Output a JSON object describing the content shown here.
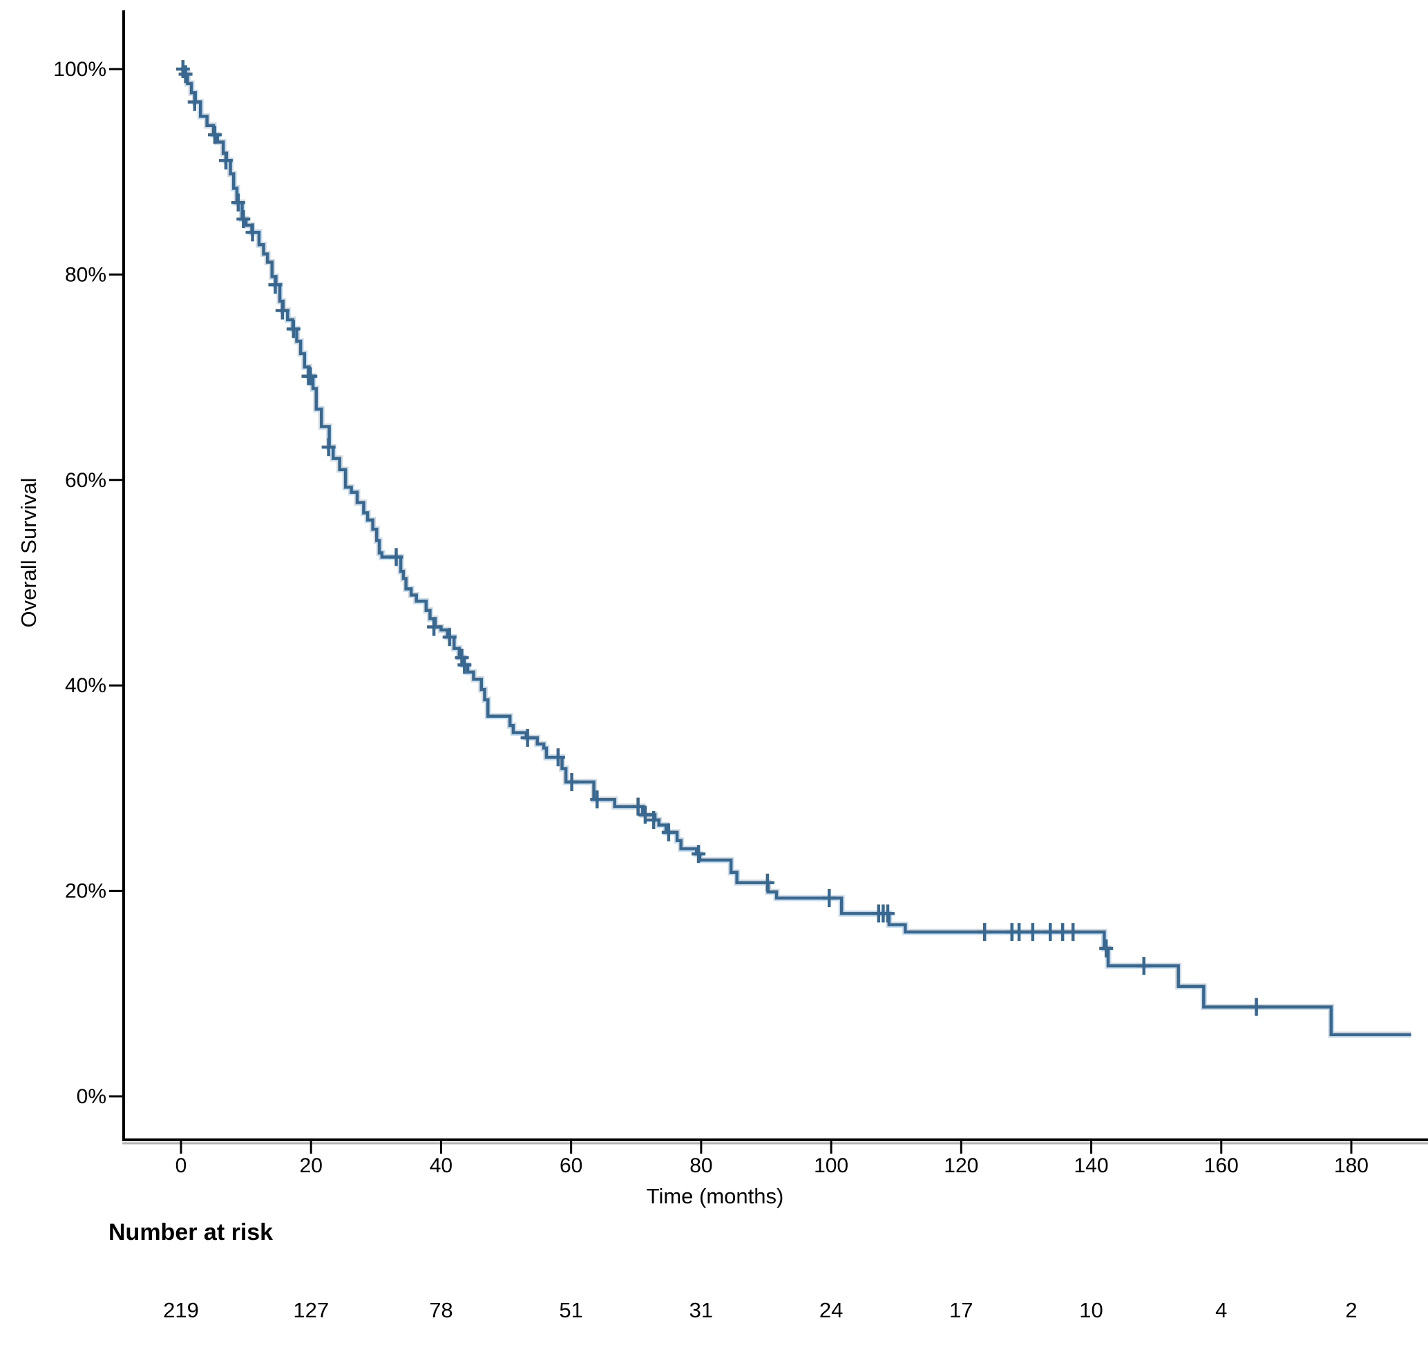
{
  "chart_data": {
    "type": "line",
    "subtype": "kaplan-meier-step-curve",
    "title": "",
    "xlabel": "Time (months)",
    "ylabel": "Overall Survival",
    "xlim": [
      0,
      190
    ],
    "ylim": [
      0,
      100
    ],
    "grid": false,
    "legend": "none",
    "x_ticks": [
      0,
      20,
      40,
      60,
      80,
      100,
      120,
      140,
      160,
      180
    ],
    "y_ticks": [
      {
        "value": 100,
        "label": "100%"
      },
      {
        "value": 80,
        "label": "80%"
      },
      {
        "value": 60,
        "label": "60%"
      },
      {
        "value": 40,
        "label": "40%"
      },
      {
        "value": 20,
        "label": "20%"
      },
      {
        "value": 0,
        "label": "0%"
      }
    ],
    "series": [
      {
        "name": "Overall Survival",
        "color": "#38678f",
        "halo_color": "#a6c0d6",
        "steps": [
          [
            0,
            100
          ],
          [
            0.5,
            99.5
          ],
          [
            1,
            98.6
          ],
          [
            1.6,
            97.7
          ],
          [
            2.2,
            96.8
          ],
          [
            3,
            95.4
          ],
          [
            4,
            94.5
          ],
          [
            5,
            93.6
          ],
          [
            5.6,
            92.9
          ],
          [
            6.5,
            91.8
          ],
          [
            7,
            91.1
          ],
          [
            7.6,
            89.8
          ],
          [
            8.1,
            88.4
          ],
          [
            8.6,
            87
          ],
          [
            9.4,
            85.4
          ],
          [
            10,
            84.8
          ],
          [
            10.9,
            84.1
          ],
          [
            12,
            82.9
          ],
          [
            12.7,
            82
          ],
          [
            13.3,
            81.2
          ],
          [
            14,
            79.8
          ],
          [
            14.6,
            79
          ],
          [
            15.2,
            77.4
          ],
          [
            15.7,
            76.5
          ],
          [
            16.4,
            75.6
          ],
          [
            17.2,
            74.7
          ],
          [
            17.8,
            73.5
          ],
          [
            18.4,
            72.3
          ],
          [
            19,
            71
          ],
          [
            19.7,
            70.1
          ],
          [
            20.3,
            68.9
          ],
          [
            20.8,
            66.9
          ],
          [
            21.6,
            65.2
          ],
          [
            22.8,
            63.2
          ],
          [
            23.4,
            62.1
          ],
          [
            24.4,
            61
          ],
          [
            25.3,
            59.3
          ],
          [
            26.2,
            58.8
          ],
          [
            27.1,
            57.8
          ],
          [
            28.1,
            56.8
          ],
          [
            28.7,
            56.1
          ],
          [
            29.5,
            55.2
          ],
          [
            30.1,
            54.1
          ],
          [
            30.5,
            52.9
          ],
          [
            30.9,
            52.5
          ],
          [
            33.8,
            51.1
          ],
          [
            34.2,
            50.4
          ],
          [
            34.6,
            49.4
          ],
          [
            35.4,
            48.8
          ],
          [
            36.2,
            48.2
          ],
          [
            37.7,
            47.3
          ],
          [
            38.3,
            46.5
          ],
          [
            39.1,
            45.7
          ],
          [
            40,
            45.4
          ],
          [
            41,
            44.7
          ],
          [
            42,
            43.6
          ],
          [
            42.8,
            42.7
          ],
          [
            43.4,
            42
          ],
          [
            44.1,
            41.3
          ],
          [
            45,
            40.6
          ],
          [
            46.2,
            39.6
          ],
          [
            46.7,
            38.6
          ],
          [
            47.2,
            37
          ],
          [
            50.6,
            36.1
          ],
          [
            51.1,
            35.4
          ],
          [
            53.1,
            34.9
          ],
          [
            54.8,
            34.3
          ],
          [
            55.8,
            33.9
          ],
          [
            56.2,
            33
          ],
          [
            58.6,
            31.9
          ],
          [
            59.2,
            30.6
          ],
          [
            63.5,
            28.9
          ],
          [
            66.7,
            28.2
          ],
          [
            71,
            27.4
          ],
          [
            72.9,
            26.9
          ],
          [
            73.5,
            26.4
          ],
          [
            74.6,
            25.7
          ],
          [
            76.3,
            24.9
          ],
          [
            76.9,
            24.1
          ],
          [
            79.3,
            23.6
          ],
          [
            79.8,
            23
          ],
          [
            84.6,
            21.8
          ],
          [
            85.5,
            20.8
          ],
          [
            90.3,
            19.9
          ],
          [
            91.6,
            19.3
          ],
          [
            101.6,
            17.8
          ],
          [
            108.9,
            16.7
          ],
          [
            111.4,
            16
          ],
          [
            142,
            14.4
          ],
          [
            142.6,
            12.7
          ],
          [
            153.4,
            10.7
          ],
          [
            157.3,
            8.7
          ],
          [
            176.9,
            6
          ],
          [
            189.2,
            6
          ]
        ],
        "censors": [
          [
            0.3,
            100
          ],
          [
            0.7,
            99.5
          ],
          [
            2.1,
            96.8
          ],
          [
            5.2,
            93.6
          ],
          [
            6.9,
            91.1
          ],
          [
            8.8,
            87
          ],
          [
            9.6,
            85.4
          ],
          [
            11,
            84.1
          ],
          [
            14.5,
            79
          ],
          [
            15.6,
            76.5
          ],
          [
            17.3,
            74.7
          ],
          [
            19.6,
            70.1
          ],
          [
            19.9,
            70.1
          ],
          [
            22.7,
            63.2
          ],
          [
            33.1,
            52.5
          ],
          [
            38.9,
            45.7
          ],
          [
            41.3,
            44.7
          ],
          [
            43.2,
            42.7
          ],
          [
            43.6,
            42
          ],
          [
            53.3,
            34.9
          ],
          [
            58,
            33
          ],
          [
            60.1,
            30.6
          ],
          [
            64,
            28.9
          ],
          [
            70.3,
            28.2
          ],
          [
            71.4,
            27.4
          ],
          [
            72.7,
            26.9
          ],
          [
            75,
            25.7
          ],
          [
            79.6,
            23.6
          ],
          [
            90.2,
            20.8
          ],
          [
            99.7,
            19.3
          ],
          [
            107.3,
            17.8
          ],
          [
            108,
            17.8
          ],
          [
            108.7,
            17.8
          ],
          [
            123.6,
            16
          ],
          [
            127.8,
            16
          ],
          [
            128.9,
            16
          ],
          [
            131,
            16
          ],
          [
            133.7,
            16
          ],
          [
            135.6,
            16
          ],
          [
            137.2,
            16
          ],
          [
            142.3,
            14.4
          ],
          [
            148.1,
            12.7
          ],
          [
            165.4,
            8.7
          ]
        ]
      }
    ],
    "at_risk": {
      "header": "Number at risk",
      "times": [
        0,
        20,
        40,
        60,
        80,
        100,
        120,
        140,
        160,
        180
      ],
      "counts": [
        219,
        127,
        78,
        51,
        31,
        24,
        17,
        10,
        4,
        2
      ]
    },
    "axis_color": "#000000",
    "axis_shadow_color": "#b3b3b3"
  }
}
